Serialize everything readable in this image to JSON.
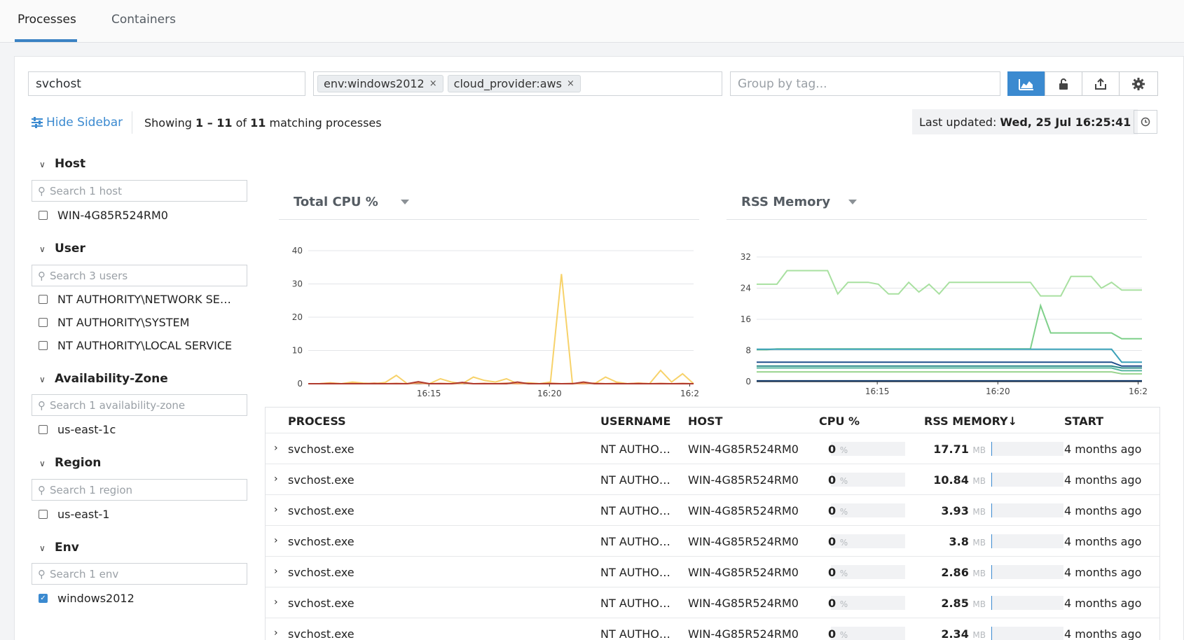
{
  "tabs": [
    {
      "label": "Processes"
    },
    {
      "label": "Containers"
    }
  ],
  "search": {
    "value": "svchost"
  },
  "filters": {
    "tags": [
      "env:windows2012",
      "cloud_provider:aws"
    ]
  },
  "group_by": {
    "placeholder": "Group by tag..."
  },
  "toolbar": {
    "buttons": [
      "area-chart-icon",
      "lock-icon",
      "export-icon",
      "gear-icon"
    ]
  },
  "hide_sidebar": "Hide Sidebar",
  "showing": {
    "prefix": "Showing ",
    "range": "1 – 11",
    "of": " of ",
    "total": "11",
    "suffix": " matching processes"
  },
  "last_updated": {
    "label": "Last updated: ",
    "value": "Wed, 25 Jul 16:25:41"
  },
  "sidebar": {
    "sections": [
      {
        "title": "Host",
        "placeholder": "Search 1 host",
        "items": [
          {
            "label": "WIN-4G85R524RM0",
            "checked": false
          }
        ]
      },
      {
        "title": "User",
        "placeholder": "Search 3 users",
        "items": [
          {
            "label": "NT AUTHORITY\\NETWORK SE…",
            "checked": false
          },
          {
            "label": "NT AUTHORITY\\SYSTEM",
            "checked": false
          },
          {
            "label": "NT AUTHORITY\\LOCAL SERVICE",
            "checked": false
          }
        ]
      },
      {
        "title": "Availability-Zone",
        "placeholder": "Search 1 availability-zone",
        "items": [
          {
            "label": "us-east-1c",
            "checked": false
          }
        ]
      },
      {
        "title": "Region",
        "placeholder": "Search 1 region",
        "items": [
          {
            "label": "us-east-1",
            "checked": false
          }
        ]
      },
      {
        "title": "Env",
        "placeholder": "Search 1 env",
        "items": [
          {
            "label": "windows2012",
            "checked": true
          }
        ]
      }
    ]
  },
  "charts": {
    "cpu_title": "Total CPU %",
    "rss_title": "RSS Memory"
  },
  "chart_data": [
    {
      "type": "line",
      "title": "Total CPU %",
      "x_ticks": [
        "16:15",
        "16:20",
        "16:2"
      ],
      "y_ticks": [
        0,
        10,
        20,
        30,
        40
      ],
      "ylim": [
        0,
        40
      ],
      "series": [
        {
          "color": "#f7d26a",
          "values": [
            0,
            0,
            0.3,
            0,
            0.5,
            0.2,
            0,
            0.4,
            2.5,
            0,
            0.3,
            0,
            1.5,
            0.5,
            0,
            2,
            1,
            0.5,
            1.5,
            0,
            0.3,
            0,
            0.5,
            33,
            0,
            0.3,
            0,
            2,
            0.5,
            0,
            0.2,
            0,
            4,
            0.5,
            3,
            0
          ]
        },
        {
          "color": "#f0a15c",
          "values": [
            0,
            0,
            0.2,
            0,
            0.1,
            0,
            0.2,
            0,
            0.1,
            0,
            0.2,
            0,
            0.1,
            0,
            0.2,
            0,
            0.1,
            0,
            0.2,
            0,
            0.1,
            0,
            0.2,
            0,
            0.1,
            0,
            0.2,
            0,
            0.1,
            0,
            0.2,
            0,
            0.1,
            0,
            0.1,
            0
          ]
        },
        {
          "color": "#b03a2e",
          "values": [
            0,
            0,
            0,
            0,
            0,
            0,
            0,
            0,
            0,
            0,
            0.6,
            0,
            0,
            0,
            0.4,
            0,
            0,
            0,
            0,
            0.5,
            0,
            0,
            0,
            0,
            0,
            0.5,
            0,
            0,
            0,
            0,
            0,
            0,
            0,
            0,
            0,
            0
          ]
        }
      ]
    },
    {
      "type": "line",
      "title": "RSS Memory",
      "x_ticks": [
        "16:15",
        "16:20",
        "16:2"
      ],
      "y_ticks": [
        0,
        8,
        16,
        24,
        32
      ],
      "ylim": [
        0,
        32
      ],
      "series": [
        {
          "color": "#a8e0a0",
          "values": [
            25,
            25,
            25,
            28.5,
            28.5,
            28.5,
            28.5,
            28.5,
            22.5,
            25.5,
            25.5,
            25.5,
            25,
            22.5,
            22.5,
            25.5,
            23,
            25,
            22.5,
            25.5,
            25.5,
            25.5,
            25.5,
            25.5,
            25.5,
            25.5,
            25.5,
            25.5,
            22,
            22,
            22,
            27,
            27,
            27,
            24,
            25.5,
            23.5,
            23.5,
            23.5
          ]
        },
        {
          "color": "#7fd08a",
          "values": [
            8.2,
            8.2,
            8.4,
            8.4,
            8.4,
            8.4,
            8.4,
            8.4,
            8.4,
            8.4,
            8.4,
            8.4,
            8.4,
            8.4,
            8.4,
            8.4,
            8.4,
            8.4,
            8.4,
            8.4,
            8.4,
            8.4,
            8.4,
            8.4,
            8.4,
            8.4,
            8.4,
            8.4,
            19.5,
            12.5,
            12.5,
            12.5,
            12.5,
            12.5,
            12.5,
            12.5,
            11,
            11,
            11
          ]
        },
        {
          "color": "#3aa0b8",
          "values": [
            8.3,
            8.3,
            8.3,
            8.3,
            8.3,
            8.3,
            8.3,
            8.3,
            8.3,
            8.3,
            8.3,
            8.3,
            8.3,
            8.3,
            8.3,
            8.3,
            8.3,
            8.3,
            8.3,
            8.3,
            8.3,
            8.3,
            8.3,
            8.3,
            8.3,
            8.3,
            8.3,
            8.3,
            8.3,
            8.3,
            8.3,
            8.3,
            8.3,
            8.3,
            8.3,
            8.3,
            5,
            5,
            5
          ]
        },
        {
          "color": "#1f4e8c",
          "values": [
            5,
            5,
            5,
            5,
            5,
            5,
            5,
            5,
            5,
            5,
            5,
            5,
            5,
            5,
            5,
            5,
            5,
            5,
            5,
            5,
            5,
            5,
            5,
            5,
            5,
            5,
            5,
            5,
            5,
            5,
            5,
            5,
            5,
            5,
            5,
            5,
            4,
            4,
            4
          ]
        },
        {
          "color": "#2b8a8a",
          "values": [
            4,
            4,
            4,
            4,
            4,
            4,
            4,
            4,
            4,
            4,
            4,
            4,
            4,
            4,
            4,
            4,
            4,
            4,
            4,
            4,
            4,
            4,
            4,
            4,
            4,
            4,
            4,
            4,
            4,
            4,
            4,
            4,
            4,
            4,
            4,
            4,
            3.5,
            3.5,
            3.5
          ]
        },
        {
          "color": "#58b8a0",
          "values": [
            3.5,
            3.5,
            3.5,
            3.5,
            3.5,
            3.5,
            3.5,
            3.5,
            3.5,
            3.5,
            3.5,
            3.5,
            3.5,
            3.5,
            3.5,
            3.5,
            3.5,
            3.5,
            3.5,
            3.5,
            3.5,
            3.5,
            3.5,
            3.5,
            3.5,
            3.5,
            3.5,
            3.5,
            3.5,
            3.5,
            3.5,
            3.5,
            3.5,
            3.5,
            3.5,
            3.5,
            2.8,
            2.8,
            2.8
          ]
        },
        {
          "color": "#9ad48f",
          "values": [
            2.5,
            2.5,
            2.5,
            2.5,
            2.5,
            2.5,
            2.5,
            2.5,
            2.5,
            2.5,
            2.5,
            2.5,
            2.5,
            2.5,
            2.5,
            2.5,
            2.5,
            2.5,
            2.5,
            2.5,
            2.5,
            2.5,
            2.5,
            2.5,
            2.5,
            2.5,
            2.5,
            2.5,
            2.5,
            2.5,
            2.5,
            2.5,
            2.5,
            2.5,
            2.5,
            2.5,
            2,
            2,
            2
          ]
        },
        {
          "color": "#123a6a",
          "values": [
            0.2,
            0.2,
            0.2,
            0.2,
            0.2,
            0.2,
            0.2,
            0.2,
            0.2,
            0.2,
            0.2,
            0.2,
            0.2,
            0.2,
            0.2,
            0.2,
            0.2,
            0.2,
            0.2,
            0.2,
            0.2,
            0.2,
            0.2,
            0.2,
            0.2,
            0.2,
            0.2,
            0.2,
            0.2,
            0.2,
            0.2,
            0.2,
            0.2,
            0.2,
            0.2,
            0.2,
            0.2,
            0.2,
            0.2
          ]
        }
      ]
    }
  ],
  "table": {
    "headers": {
      "process": "PROCESS",
      "username": "USERNAME",
      "host": "HOST",
      "cpu": "CPU %",
      "rss": "RSS MEMORY↓",
      "start": "START"
    },
    "units": {
      "cpu": "%",
      "rss": "MB"
    },
    "rows": [
      {
        "process": "svchost.exe",
        "username": "NT AUTHO…",
        "host": "WIN-4G85R524RM0",
        "cpu": "0",
        "rss": "17.71",
        "start": "4 months ago"
      },
      {
        "process": "svchost.exe",
        "username": "NT AUTHO…",
        "host": "WIN-4G85R524RM0",
        "cpu": "0",
        "rss": "10.84",
        "start": "4 months ago"
      },
      {
        "process": "svchost.exe",
        "username": "NT AUTHO…",
        "host": "WIN-4G85R524RM0",
        "cpu": "0",
        "rss": "3.93",
        "start": "4 months ago"
      },
      {
        "process": "svchost.exe",
        "username": "NT AUTHO…",
        "host": "WIN-4G85R524RM0",
        "cpu": "0",
        "rss": "3.8",
        "start": "4 months ago"
      },
      {
        "process": "svchost.exe",
        "username": "NT AUTHO…",
        "host": "WIN-4G85R524RM0",
        "cpu": "0",
        "rss": "2.86",
        "start": "4 months ago"
      },
      {
        "process": "svchost.exe",
        "username": "NT AUTHO…",
        "host": "WIN-4G85R524RM0",
        "cpu": "0",
        "rss": "2.85",
        "start": "4 months ago"
      },
      {
        "process": "svchost.exe",
        "username": "NT AUTHO…",
        "host": "WIN-4G85R524RM0",
        "cpu": "0",
        "rss": "2.34",
        "start": "4 months ago"
      }
    ]
  }
}
